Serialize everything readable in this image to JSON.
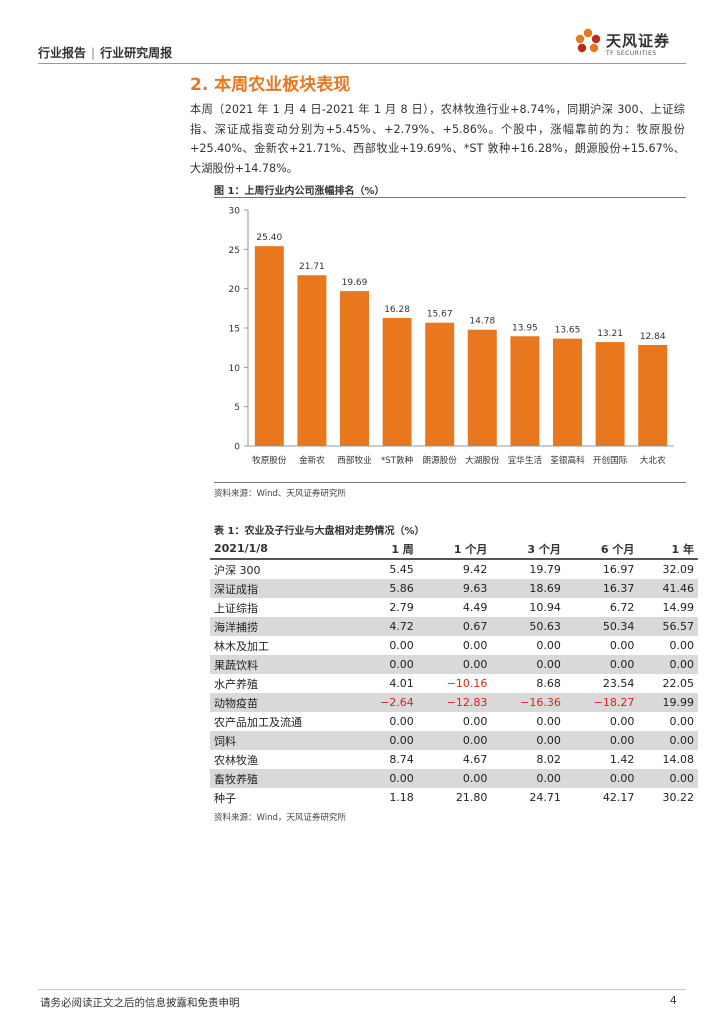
{
  "header": {
    "left_a": "行业报告",
    "separator": "|",
    "left_b": "行业研究周报",
    "logo_text": "天风证券",
    "logo_sub": "TF SECURITIES"
  },
  "section_title": "2. 本周农业板块表现",
  "paragraph": "本周（2021 年 1 月 4 日-2021 年 1 月 8 日），农林牧渔行业+8.74%，同期沪深 300、上证综指、深证成指变动分别为+5.45%、+2.79%、+5.86%。个股中，涨幅靠前的为：牧原股份+25.40%、金新农+21.71%、西部牧业+19.69%、*ST 敦种+16.28%，朗源股份+15.67%、大湖股份+14.78%。",
  "figure": {
    "title": "图 1：上周行业内公司涨幅排名（%）",
    "source": "资料来源：Wind、天风证券研究所"
  },
  "chart_data": {
    "type": "bar",
    "categories": [
      "牧原股份",
      "金新农",
      "西部牧业",
      "*ST敦种",
      "朗源股份",
      "大湖股份",
      "宜华生活",
      "荃银高科",
      "开创国际",
      "大北农"
    ],
    "values": [
      25.4,
      21.71,
      19.69,
      16.28,
      15.67,
      14.78,
      13.95,
      13.65,
      13.21,
      12.84
    ],
    "value_labels": [
      "25.40",
      "21.71",
      "19.69",
      "16.28",
      "15.67",
      "14.78",
      "13.95",
      "13.65",
      "13.21",
      "12.84"
    ],
    "yticks": [
      "0",
      "5",
      "10",
      "15",
      "20",
      "25",
      "30"
    ],
    "ylim": [
      0,
      30
    ],
    "bar_color": "#e8771e",
    "grid": false
  },
  "table": {
    "title": "表 1：农业及子行业与大盘相对走势情况（%）",
    "source": "资料来源：Wind，天风证券研究所",
    "headers": [
      "2021/1/8",
      "1 周",
      "1 个月",
      "3 个月",
      "6 个月",
      "1 年"
    ],
    "rows": [
      [
        "沪深 300",
        "5.45",
        "9.42",
        "19.79",
        "16.97",
        "32.09"
      ],
      [
        "深证成指",
        "5.86",
        "9.63",
        "18.69",
        "16.37",
        "41.46"
      ],
      [
        "上证综指",
        "2.79",
        "4.49",
        "10.94",
        "6.72",
        "14.99"
      ],
      [
        "海洋捕捞",
        "4.72",
        "0.67",
        "50.63",
        "50.34",
        "56.57"
      ],
      [
        "林木及加工",
        "0.00",
        "0.00",
        "0.00",
        "0.00",
        "0.00"
      ],
      [
        "果蔬饮料",
        "0.00",
        "0.00",
        "0.00",
        "0.00",
        "0.00"
      ],
      [
        "水产养殖",
        "4.01",
        "−10.16",
        "8.68",
        "23.54",
        "22.05"
      ],
      [
        "动物疫苗",
        "−2.64",
        "−12.83",
        "−16.36",
        "−18.27",
        "19.99"
      ],
      [
        "农产品加工及流通",
        "0.00",
        "0.00",
        "0.00",
        "0.00",
        "0.00"
      ],
      [
        "饲料",
        "0.00",
        "0.00",
        "0.00",
        "0.00",
        "0.00"
      ],
      [
        "农林牧渔",
        "8.74",
        "4.67",
        "8.02",
        "1.42",
        "14.08"
      ],
      [
        "畜牧养殖",
        "0.00",
        "0.00",
        "0.00",
        "0.00",
        "0.00"
      ],
      [
        "种子",
        "1.18",
        "21.80",
        "24.71",
        "42.17",
        "30.22"
      ]
    ],
    "negative_color": "#e02020",
    "shade_color": "#d9d9d9"
  },
  "footer": {
    "disclaimer": "请务必阅读正文之后的信息披露和免责申明",
    "page": "4"
  }
}
